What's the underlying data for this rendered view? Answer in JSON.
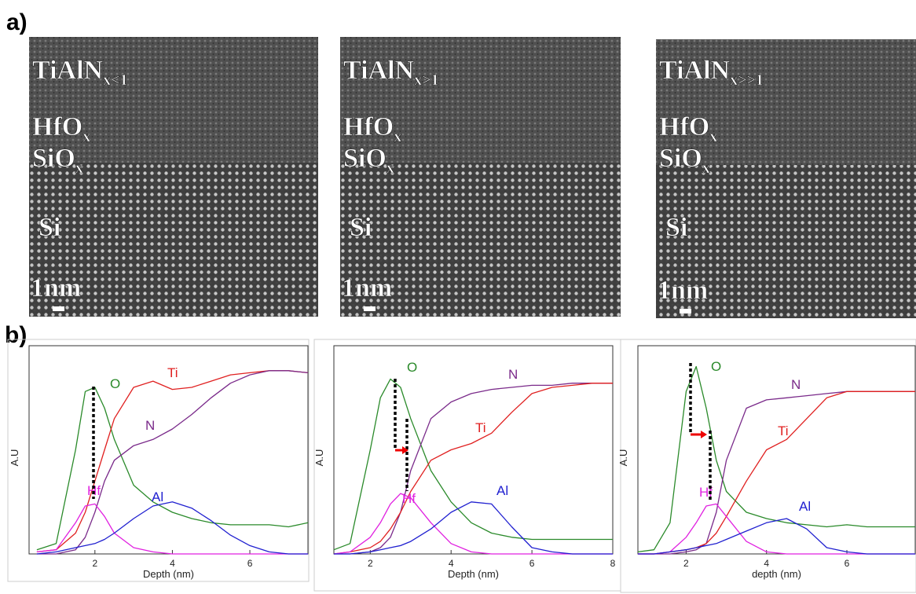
{
  "panels": {
    "a": "a)",
    "b": "b)"
  },
  "tem_images": [
    {
      "layers": [
        {
          "text": "TiAlN",
          "sub": "x<1"
        },
        {
          "text": "HfO",
          "sub": "x"
        },
        {
          "text": "SiO",
          "sub": "x"
        },
        {
          "text": "Si"
        }
      ],
      "scale": "1nm"
    },
    {
      "layers": [
        {
          "text": "TiAlN",
          "sub": "x>1"
        },
        {
          "text": "HfO",
          "sub": "x"
        },
        {
          "text": "SiO",
          "sub": "x"
        },
        {
          "text": "Si"
        }
      ],
      "scale": "1nm"
    },
    {
      "layers": [
        {
          "text": "TiAlN",
          "sub": "x>>1"
        },
        {
          "text": "HfO",
          "sub": "x"
        },
        {
          "text": "SiO",
          "sub": "x"
        },
        {
          "text": "Si"
        }
      ],
      "scale": "1nm"
    }
  ],
  "chart_data": [
    {
      "type": "line",
      "xlabel": "Depth (nm)",
      "ylabel": "A.U",
      "xlim": [
        0.3,
        7.5
      ],
      "ylim": [
        0,
        1
      ],
      "xticks": [
        2,
        4,
        6
      ],
      "x": [
        0.5,
        1,
        1.5,
        1.75,
        2,
        2.25,
        2.5,
        3,
        3.5,
        4,
        4.5,
        5,
        5.5,
        6,
        6.5,
        7,
        7.5
      ],
      "series": [
        {
          "name": "O",
          "color": "#2a8a2a",
          "values": [
            0.02,
            0.05,
            0.5,
            0.78,
            0.8,
            0.7,
            0.55,
            0.33,
            0.25,
            0.2,
            0.17,
            0.15,
            0.14,
            0.14,
            0.14,
            0.13,
            0.15
          ]
        },
        {
          "name": "Ti",
          "color": "#e02020",
          "values": [
            0.01,
            0.02,
            0.1,
            0.2,
            0.35,
            0.5,
            0.65,
            0.8,
            0.83,
            0.79,
            0.8,
            0.83,
            0.86,
            0.87,
            0.88,
            0.88,
            0.87
          ]
        },
        {
          "name": "N",
          "color": "#7a2a8a",
          "values": [
            0,
            0,
            0.02,
            0.08,
            0.2,
            0.35,
            0.45,
            0.52,
            0.55,
            0.6,
            0.67,
            0.75,
            0.82,
            0.86,
            0.88,
            0.88,
            0.87
          ]
        },
        {
          "name": "Hf",
          "color": "#e020e0",
          "values": [
            0.01,
            0.02,
            0.15,
            0.23,
            0.24,
            0.18,
            0.1,
            0.03,
            0.01,
            0,
            0,
            0,
            0,
            0,
            0,
            0,
            0
          ]
        },
        {
          "name": "Al",
          "color": "#2020d0",
          "values": [
            0,
            0.01,
            0.03,
            0.04,
            0.05,
            0.07,
            0.1,
            0.17,
            0.23,
            0.25,
            0.22,
            0.16,
            0.09,
            0.04,
            0.01,
            0,
            0
          ]
        }
      ]
    },
    {
      "type": "line",
      "xlabel": "Depth (nm)",
      "ylabel": "A.U",
      "xlim": [
        1.1,
        8
      ],
      "ylim": [
        0,
        1
      ],
      "xticks": [
        2,
        4,
        6,
        8
      ],
      "x": [
        1.1,
        1.5,
        2,
        2.25,
        2.5,
        2.75,
        3,
        3.5,
        4,
        4.5,
        5,
        5.5,
        6,
        6.5,
        7,
        7.5,
        8
      ],
      "series": [
        {
          "name": "O",
          "color": "#2a8a2a",
          "values": [
            0.02,
            0.05,
            0.5,
            0.75,
            0.84,
            0.8,
            0.65,
            0.4,
            0.25,
            0.15,
            0.1,
            0.08,
            0.07,
            0.07,
            0.07,
            0.07,
            0.07
          ]
        },
        {
          "name": "N",
          "color": "#7a2a8a",
          "values": [
            0,
            0,
            0.01,
            0.03,
            0.08,
            0.2,
            0.4,
            0.65,
            0.73,
            0.77,
            0.79,
            0.8,
            0.81,
            0.81,
            0.82,
            0.82,
            0.82
          ]
        },
        {
          "name": "Ti",
          "color": "#e02020",
          "values": [
            0,
            0.01,
            0.03,
            0.06,
            0.12,
            0.2,
            0.3,
            0.45,
            0.5,
            0.53,
            0.58,
            0.68,
            0.77,
            0.8,
            0.81,
            0.82,
            0.82
          ]
        },
        {
          "name": "Hf",
          "color": "#e020e0",
          "values": [
            0,
            0.01,
            0.08,
            0.15,
            0.24,
            0.29,
            0.27,
            0.15,
            0.05,
            0.01,
            0,
            0,
            0,
            0,
            0,
            0,
            0
          ]
        },
        {
          "name": "Al",
          "color": "#2020d0",
          "values": [
            0,
            0,
            0.01,
            0.02,
            0.03,
            0.04,
            0.06,
            0.12,
            0.2,
            0.25,
            0.24,
            0.13,
            0.03,
            0.01,
            0,
            0,
            0
          ]
        }
      ]
    },
    {
      "type": "line",
      "xlabel": "depth (nm)",
      "ylabel": "A.U",
      "xlim": [
        0.8,
        7.7
      ],
      "ylim": [
        0,
        1
      ],
      "xticks": [
        2,
        4,
        6
      ],
      "x": [
        0.8,
        1.2,
        1.6,
        2,
        2.25,
        2.5,
        2.75,
        3,
        3.5,
        4,
        4.5,
        5,
        5.5,
        6,
        6.5,
        7,
        7.7
      ],
      "series": [
        {
          "name": "O",
          "color": "#2a8a2a",
          "values": [
            0.01,
            0.02,
            0.15,
            0.78,
            0.9,
            0.7,
            0.45,
            0.3,
            0.2,
            0.17,
            0.15,
            0.14,
            0.13,
            0.14,
            0.13,
            0.13,
            0.13
          ]
        },
        {
          "name": "N",
          "color": "#7a2a8a",
          "values": [
            0,
            0,
            0,
            0.01,
            0.02,
            0.05,
            0.2,
            0.45,
            0.7,
            0.74,
            0.75,
            0.76,
            0.77,
            0.78,
            0.78,
            0.78,
            0.78
          ]
        },
        {
          "name": "Ti",
          "color": "#e02020",
          "values": [
            0,
            0,
            0.01,
            0.02,
            0.03,
            0.05,
            0.1,
            0.18,
            0.35,
            0.5,
            0.55,
            0.65,
            0.75,
            0.78,
            0.78,
            0.78,
            0.78
          ]
        },
        {
          "name": "Hf",
          "color": "#e020e0",
          "values": [
            0,
            0,
            0.01,
            0.08,
            0.15,
            0.23,
            0.24,
            0.18,
            0.06,
            0.01,
            0,
            0,
            0,
            0,
            0,
            0,
            0
          ]
        },
        {
          "name": "Al",
          "color": "#2020d0",
          "values": [
            0,
            0,
            0.01,
            0.02,
            0.03,
            0.04,
            0.05,
            0.07,
            0.11,
            0.15,
            0.17,
            0.12,
            0.03,
            0.01,
            0,
            0,
            0
          ]
        }
      ]
    }
  ]
}
